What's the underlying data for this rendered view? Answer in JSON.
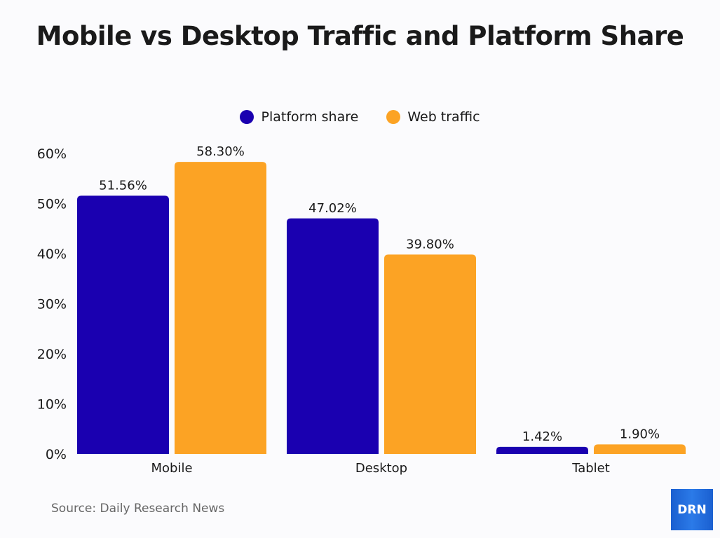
{
  "chart_data": {
    "type": "bar",
    "title": "Mobile vs Desktop Traffic and Platform Share",
    "categories": [
      "Mobile",
      "Desktop",
      "Tablet"
    ],
    "series": [
      {
        "name": "Platform share",
        "values": [
          51.56,
          47.02,
          1.42
        ],
        "labels": [
          "51.56%",
          "47.02%",
          "1.42%"
        ],
        "color": "#1a00b0"
      },
      {
        "name": "Web traffic",
        "values": [
          58.3,
          39.8,
          1.9
        ],
        "labels": [
          "58.30%",
          "39.80%",
          "1.90%"
        ],
        "color": "#fca324"
      }
    ],
    "yticks": [
      "0%",
      "10%",
      "20%",
      "30%",
      "40%",
      "50%",
      "60%"
    ],
    "ylim": [
      0,
      60
    ],
    "grid": false,
    "legend": "top-center"
  },
  "source": "Source: Daily Research News",
  "logo_text": "DRN"
}
